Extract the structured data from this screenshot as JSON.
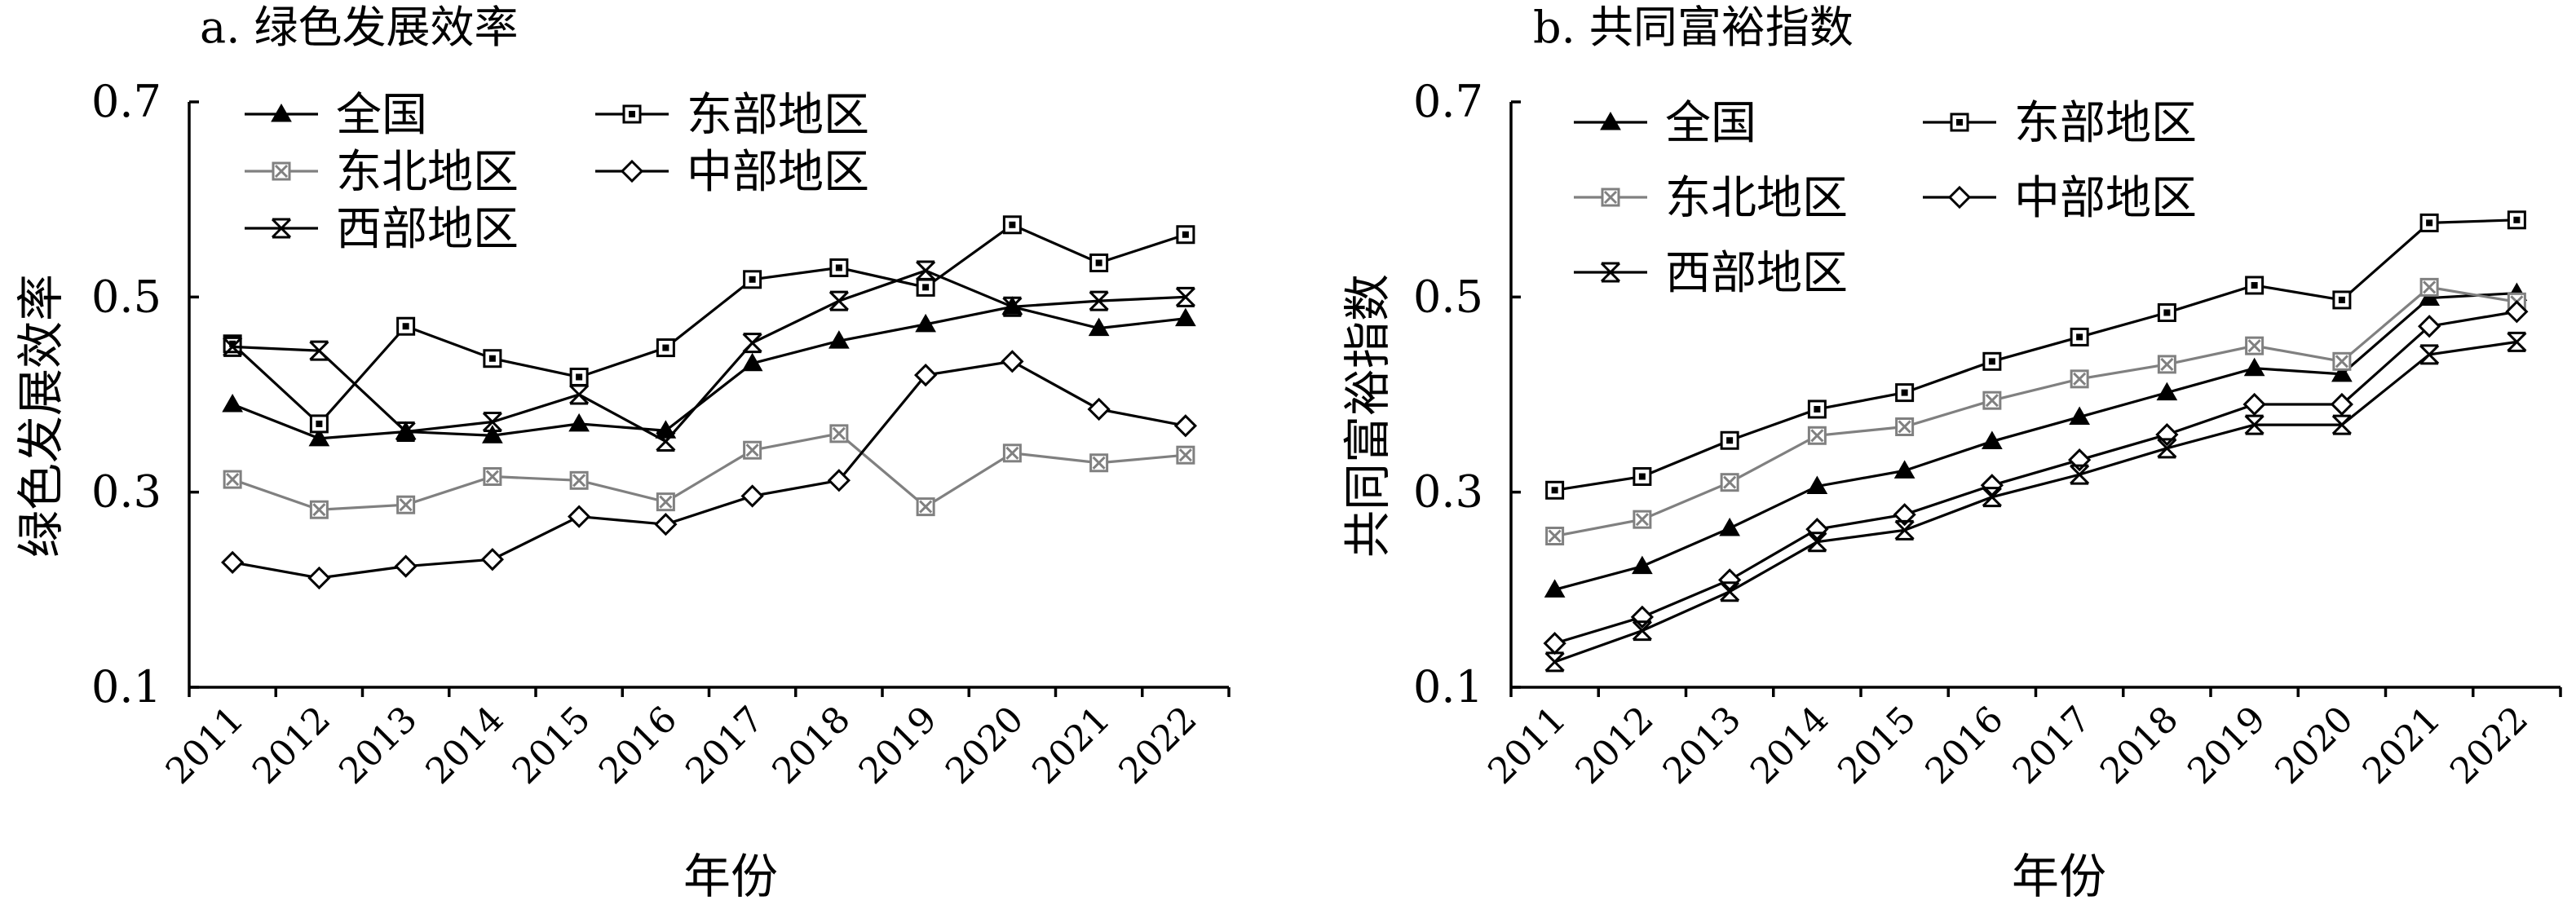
{
  "chart_data": [
    {
      "type": "line",
      "title": "a. 绿色发展效率",
      "xlabel": "年份",
      "ylabel": "绿色发展效率",
      "ylim": [
        0.1,
        0.7
      ],
      "yticks": [
        "0.1",
        "0.3",
        "0.5",
        "0.7"
      ],
      "categories": [
        "2011",
        "2012",
        "2013",
        "2014",
        "2015",
        "2016",
        "2017",
        "2018",
        "2019",
        "2020",
        "2021",
        "2022"
      ],
      "legend_position": "top-left",
      "series": [
        {
          "name": "全国",
          "marker": "triangle",
          "color": "#000000",
          "values": [
            0.39,
            0.355,
            0.362,
            0.358,
            0.37,
            0.363,
            0.432,
            0.455,
            0.472,
            0.49,
            0.468,
            0.478
          ]
        },
        {
          "name": "东部地区",
          "marker": "square",
          "color": "#000000",
          "values": [
            0.452,
            0.37,
            0.47,
            0.437,
            0.418,
            0.448,
            0.518,
            0.53,
            0.51,
            0.574,
            0.535,
            0.564
          ]
        },
        {
          "name": "东北地区",
          "marker": "xsquare",
          "color": "#808080",
          "values": [
            0.313,
            0.282,
            0.287,
            0.316,
            0.312,
            0.29,
            0.343,
            0.36,
            0.285,
            0.34,
            0.33,
            0.338
          ]
        },
        {
          "name": "中部地区",
          "marker": "diamond",
          "color": "#000000",
          "values": [
            0.228,
            0.212,
            0.224,
            0.231,
            0.275,
            0.267,
            0.296,
            0.312,
            0.42,
            0.434,
            0.385,
            0.368
          ]
        },
        {
          "name": "西部地区",
          "marker": "star",
          "color": "#000000",
          "values": [
            0.449,
            0.445,
            0.362,
            0.372,
            0.4,
            0.352,
            0.453,
            0.496,
            0.527,
            0.49,
            0.496,
            0.5
          ]
        }
      ]
    },
    {
      "type": "line",
      "title": "b. 共同富裕指数",
      "xlabel": "年份",
      "ylabel": "共同富裕指数",
      "ylim": [
        0.1,
        0.7
      ],
      "yticks": [
        "0.1",
        "0.3",
        "0.5",
        "0.7"
      ],
      "categories": [
        "2011",
        "2012",
        "2013",
        "2014",
        "2015",
        "2016",
        "2017",
        "2018",
        "2019",
        "2020",
        "2021",
        "2022"
      ],
      "legend_position": "top-left",
      "series": [
        {
          "name": "全国",
          "marker": "triangle",
          "color": "#000000",
          "values": [
            0.2,
            0.224,
            0.263,
            0.306,
            0.322,
            0.352,
            0.377,
            0.402,
            0.427,
            0.421,
            0.499,
            0.504
          ]
        },
        {
          "name": "东部地区",
          "marker": "square",
          "color": "#000000",
          "values": [
            0.302,
            0.316,
            0.353,
            0.385,
            0.402,
            0.434,
            0.459,
            0.484,
            0.512,
            0.497,
            0.576,
            0.579
          ]
        },
        {
          "name": "东北地区",
          "marker": "xsquare",
          "color": "#808080",
          "values": [
            0.255,
            0.272,
            0.31,
            0.358,
            0.367,
            0.394,
            0.416,
            0.431,
            0.45,
            0.434,
            0.51,
            0.495
          ]
        },
        {
          "name": "中部地区",
          "marker": "diamond",
          "color": "#000000",
          "values": [
            0.145,
            0.172,
            0.21,
            0.262,
            0.277,
            0.307,
            0.333,
            0.359,
            0.39,
            0.39,
            0.47,
            0.485
          ]
        },
        {
          "name": "西部地区",
          "marker": "star",
          "color": "#000000",
          "values": [
            0.126,
            0.158,
            0.198,
            0.249,
            0.261,
            0.295,
            0.318,
            0.345,
            0.369,
            0.369,
            0.441,
            0.454
          ]
        }
      ]
    }
  ]
}
